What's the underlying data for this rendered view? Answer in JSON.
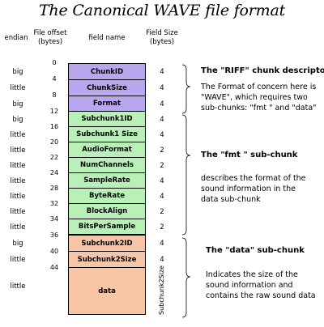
{
  "title": "The Canonical WAVE file format",
  "headers": {
    "endian": "endian",
    "offset": "File offset\n(bytes)",
    "field": "field name",
    "size": "Field Size\n(bytes)"
  },
  "offset_labels": [
    "0",
    "4",
    "8",
    "12",
    "16",
    "20",
    "22",
    "24",
    "28",
    "32",
    "34",
    "36",
    "40",
    "44"
  ],
  "rows": [
    {
      "endian": "big",
      "name": "ChunkID",
      "size": "4"
    },
    {
      "endian": "little",
      "name": "ChunkSize",
      "size": "4"
    },
    {
      "endian": "big",
      "name": "Format",
      "size": "4"
    },
    {
      "endian": "big",
      "name": "Subchunk1ID",
      "size": "4"
    },
    {
      "endian": "little",
      "name": "Subchunk1 Size",
      "size": "4"
    },
    {
      "endian": "little",
      "name": "AudioFormat",
      "size": "2"
    },
    {
      "endian": "little",
      "name": "NumChannels",
      "size": "2"
    },
    {
      "endian": "little",
      "name": "SampleRate",
      "size": "4"
    },
    {
      "endian": "little",
      "name": "ByteRate",
      "size": "4"
    },
    {
      "endian": "little",
      "name": "BlockAlign",
      "size": "2"
    },
    {
      "endian": "little",
      "name": "BitsPerSample",
      "size": "2"
    },
    {
      "endian": "big",
      "name": "Subchunk2ID",
      "size": "4"
    },
    {
      "endian": "little",
      "name": "Subchunk2Size",
      "size": "4"
    },
    {
      "endian": "little",
      "name": "data",
      "size": "Subchunk2Size"
    }
  ],
  "descriptions": {
    "riff": {
      "title": "The \"RIFF\" chunk descriptor",
      "text": "The Format of concern here is \"WAVE\", which requires two sub-chunks: \"fmt \" and \"data\""
    },
    "fmt": {
      "title": "The \"fmt \" sub-chunk",
      "text": "describes the format of the sound information in the data sub-chunk"
    },
    "data": {
      "title": "The \"data\" sub-chunk",
      "text": "Indicates the size of the sound information and contains the raw sound data"
    }
  },
  "colors": {
    "riff": "#b8a6ee",
    "fmt": "#b8f0b8",
    "data": "#f8c6a6",
    "outline": "#000000"
  }
}
